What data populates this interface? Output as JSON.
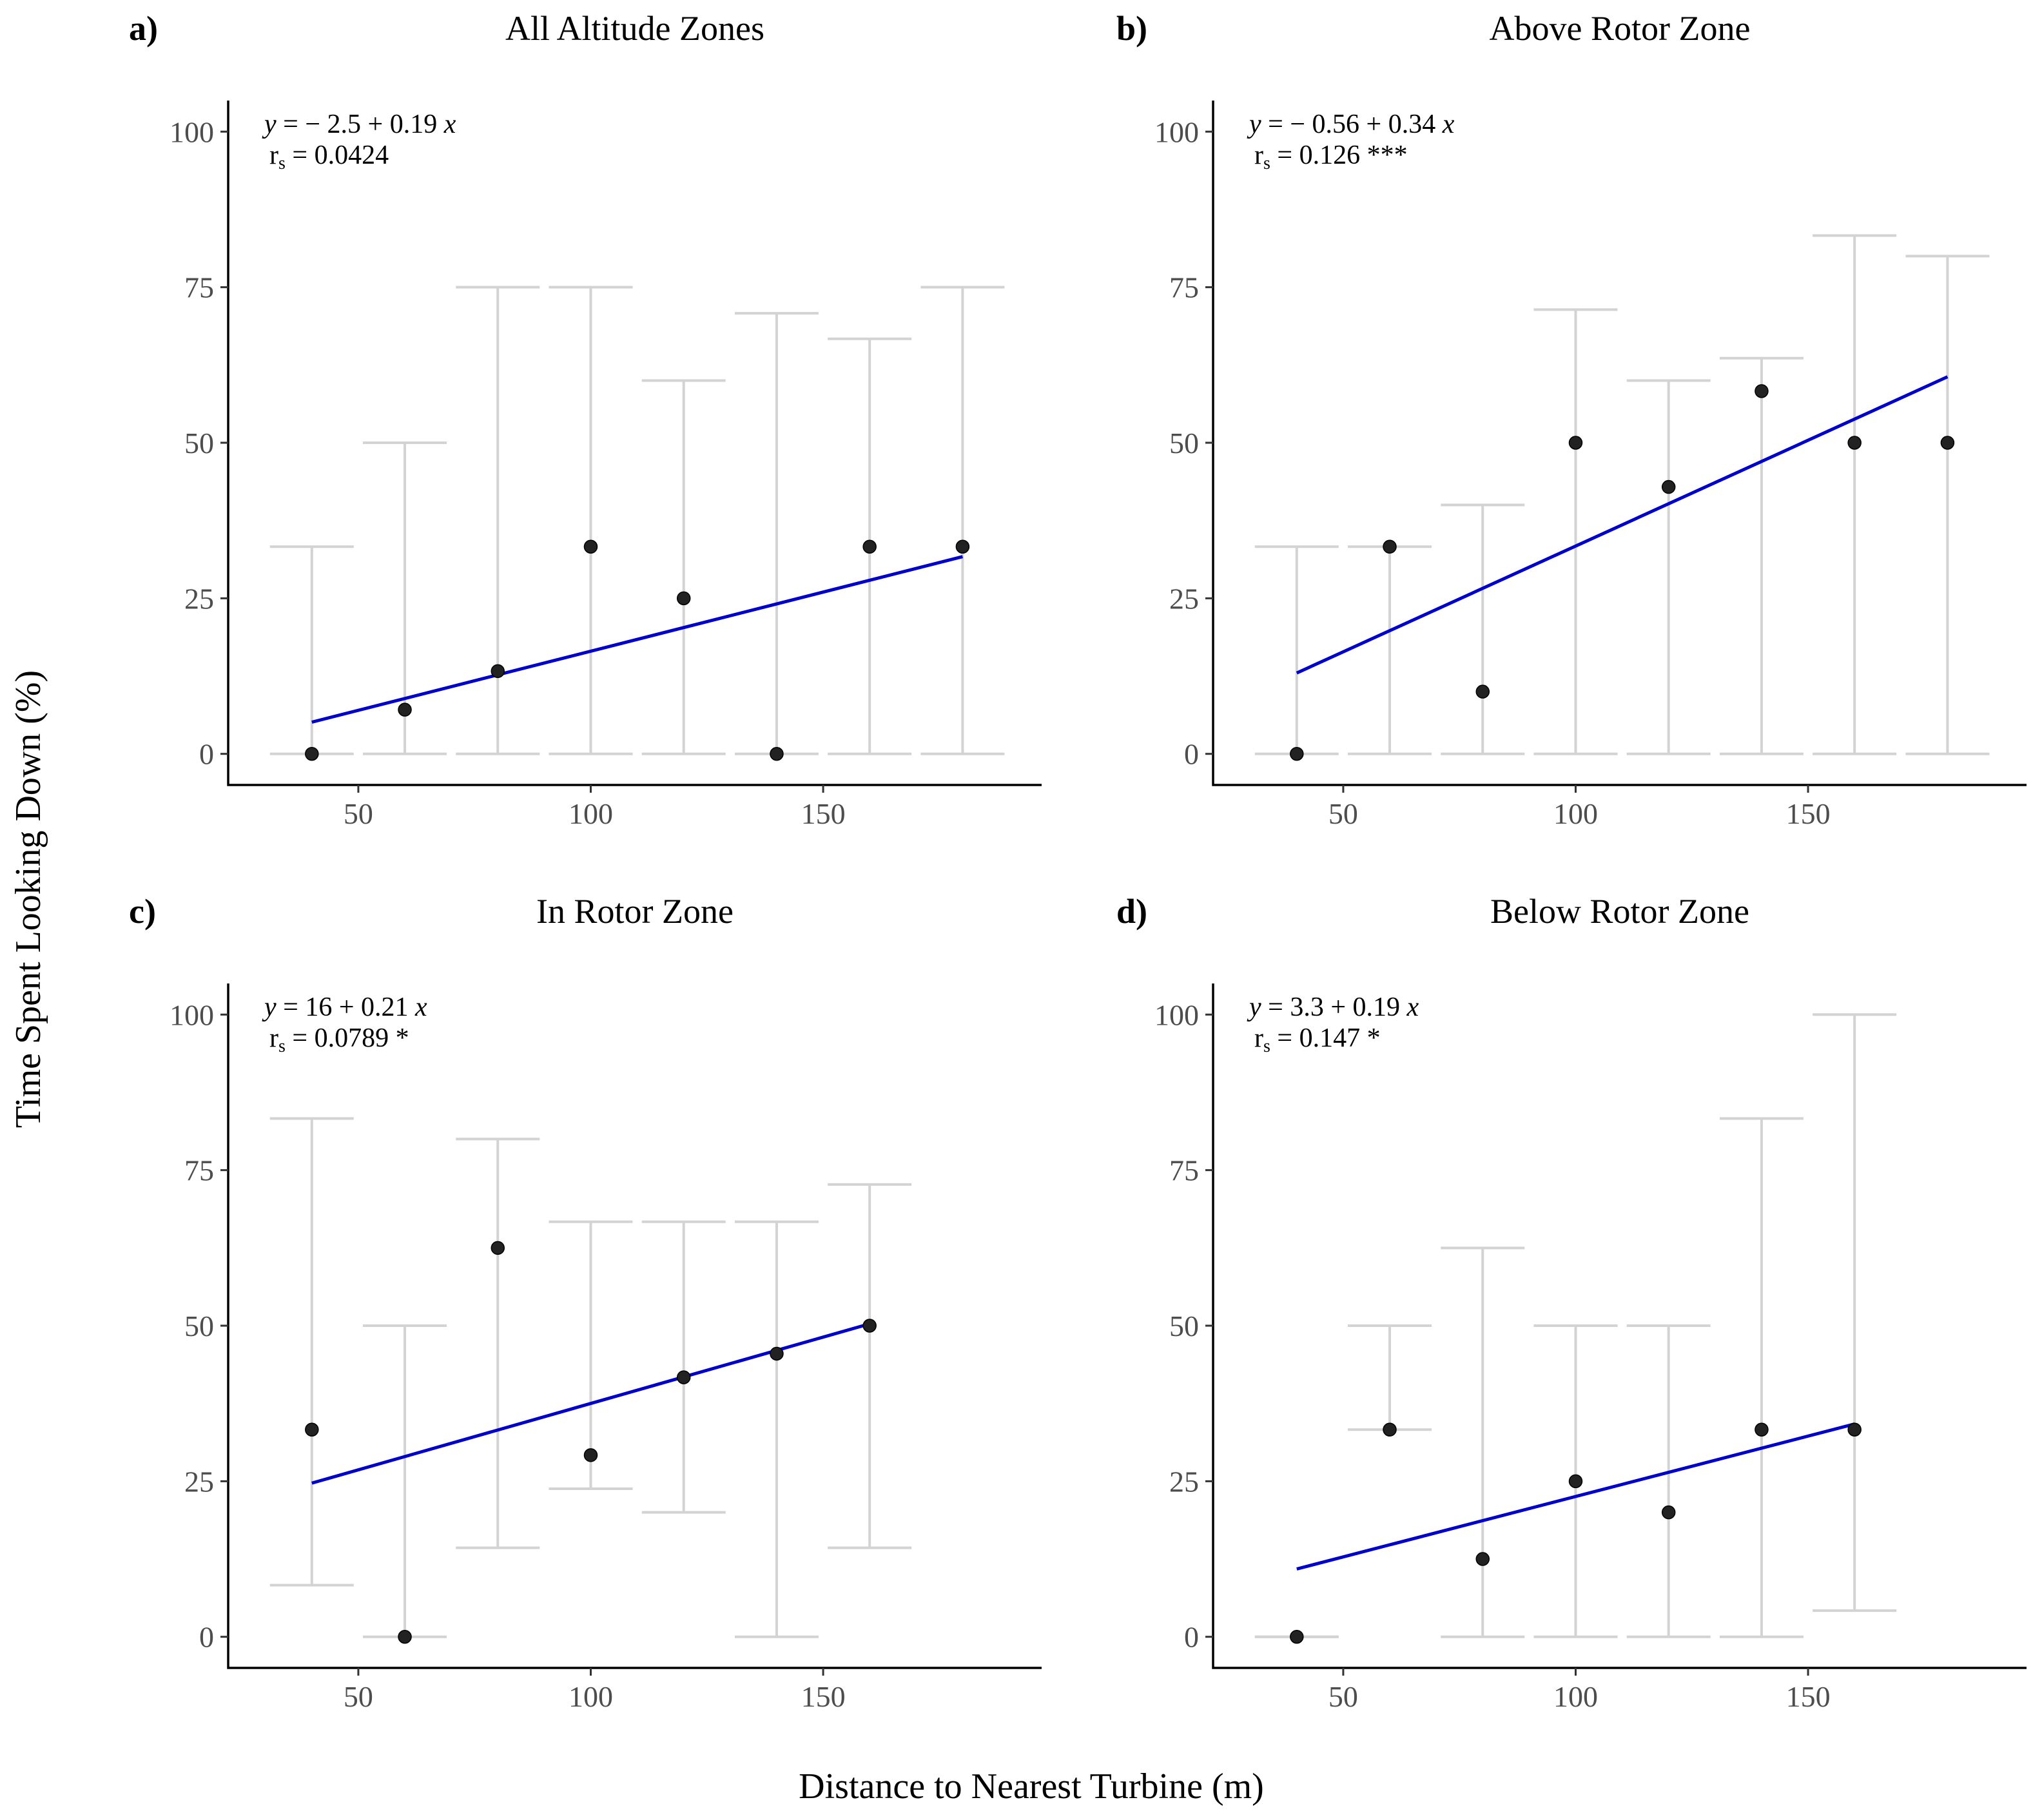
{
  "figure": {
    "ylabel": "Time Spent Looking Down (%)",
    "xlabel": "Distance to Nearest Turbine (m)",
    "colors": {
      "fit": "#0000CC",
      "point": "#222222",
      "errorbar": "#D3D3D3",
      "axis": "#000000",
      "tick_label": "#4D4D4D"
    }
  },
  "chart_data": [
    {
      "type": "scatter",
      "letter": "a)",
      "title": "All Altitude Zones",
      "equation": {
        "y": "y",
        "eq": "=",
        "intercept": "− 2.5",
        "slope": "+ 0.19",
        "x": "x"
      },
      "rs": {
        "r": "r",
        "sub": "s",
        "text": " = 0.0424"
      },
      "x": [
        40,
        60,
        80,
        100,
        120,
        140,
        160,
        180
      ],
      "y": [
        0,
        7.1,
        13.3,
        33.3,
        25,
        0,
        33.3,
        33.3
      ],
      "lower": [
        0,
        0,
        0,
        0,
        0,
        0,
        0,
        0
      ],
      "upper": [
        33.3,
        50,
        75,
        75,
        60,
        70.8,
        66.7,
        75
      ],
      "fit": {
        "x": [
          40,
          180
        ],
        "y": [
          5.1,
          31.7
        ]
      },
      "xlim": [
        22,
        197
      ],
      "ylim": [
        -5,
        105
      ],
      "xticks": [
        50,
        100,
        150
      ],
      "yticks": [
        0,
        25,
        50,
        75,
        100
      ],
      "xticklabels": [
        "50",
        "100",
        "150"
      ],
      "yticklabels": [
        "0",
        "25",
        "50",
        "75",
        "100"
      ]
    },
    {
      "type": "scatter",
      "letter": "b)",
      "title": "Above Rotor Zone",
      "equation": {
        "y": "y",
        "eq": "=",
        "intercept": "− 0.56",
        "slope": "+ 0.34",
        "x": "x"
      },
      "rs": {
        "r": "r",
        "sub": "s",
        "text": " = 0.126 ***"
      },
      "x": [
        40,
        60,
        80,
        100,
        120,
        140,
        160,
        180
      ],
      "y": [
        0,
        33.3,
        10,
        50,
        42.9,
        58.3,
        50,
        50
      ],
      "lower": [
        0,
        0,
        0,
        0,
        0,
        0,
        0,
        0
      ],
      "upper": [
        33.3,
        33.3,
        40,
        71.4,
        60,
        63.6,
        83.3,
        80
      ],
      "fit": {
        "x": [
          40,
          180
        ],
        "y": [
          13.0,
          60.6
        ]
      },
      "xlim": [
        22,
        197
      ],
      "ylim": [
        -5,
        105
      ],
      "xticks": [
        50,
        100,
        150
      ],
      "yticks": [
        0,
        25,
        50,
        75,
        100
      ],
      "xticklabels": [
        "50",
        "100",
        "150"
      ],
      "yticklabels": [
        "0",
        "25",
        "50",
        "75",
        "100"
      ]
    },
    {
      "type": "scatter",
      "letter": "c)",
      "title": "In Rotor Zone",
      "equation": {
        "y": "y",
        "eq": "=",
        "intercept": "16",
        "slope": "+ 0.21",
        "x": "x"
      },
      "rs": {
        "r": "r",
        "sub": "s",
        "text": " = 0.0789 *"
      },
      "x": [
        40,
        60,
        80,
        100,
        120,
        140,
        160
      ],
      "y": [
        33.3,
        0,
        62.5,
        29.2,
        41.7,
        45.5,
        50
      ],
      "lower": [
        8.3,
        0,
        14.3,
        23.8,
        20,
        0,
        14.3
      ],
      "upper": [
        83.3,
        50,
        80,
        66.7,
        66.7,
        66.7,
        72.7
      ],
      "fit": {
        "x": [
          40,
          160
        ],
        "y": [
          24.7,
          50.3
        ]
      },
      "xlim": [
        22,
        197
      ],
      "ylim": [
        -5,
        105
      ],
      "xticks": [
        50,
        100,
        150
      ],
      "yticks": [
        0,
        25,
        50,
        75,
        100
      ],
      "xticklabels": [
        "50",
        "100",
        "150"
      ],
      "yticklabels": [
        "0",
        "25",
        "50",
        "75",
        "100"
      ]
    },
    {
      "type": "scatter",
      "letter": "d)",
      "title": "Below Rotor Zone",
      "equation": {
        "y": "y",
        "eq": "=",
        "intercept": "3.3",
        "slope": "+ 0.19",
        "x": "x"
      },
      "rs": {
        "r": "r",
        "sub": "s",
        "text": " = 0.147 *"
      },
      "x": [
        40,
        60,
        80,
        100,
        120,
        140,
        160
      ],
      "y": [
        0,
        33.3,
        12.5,
        25,
        20,
        33.3,
        33.3
      ],
      "lower": [
        0,
        33.3,
        0,
        0,
        0,
        0,
        4.2
      ],
      "upper": [
        0,
        50,
        62.5,
        50,
        50,
        83.3,
        100
      ],
      "fit": {
        "x": [
          40,
          160
        ],
        "y": [
          10.9,
          34.2
        ]
      },
      "xlim": [
        22,
        197
      ],
      "ylim": [
        -5,
        105
      ],
      "xticks": [
        50,
        100,
        150
      ],
      "yticks": [
        0,
        25,
        50,
        75,
        100
      ],
      "xticklabels": [
        "50",
        "100",
        "150"
      ],
      "yticklabels": [
        "0",
        "25",
        "50",
        "75",
        "100"
      ]
    }
  ]
}
